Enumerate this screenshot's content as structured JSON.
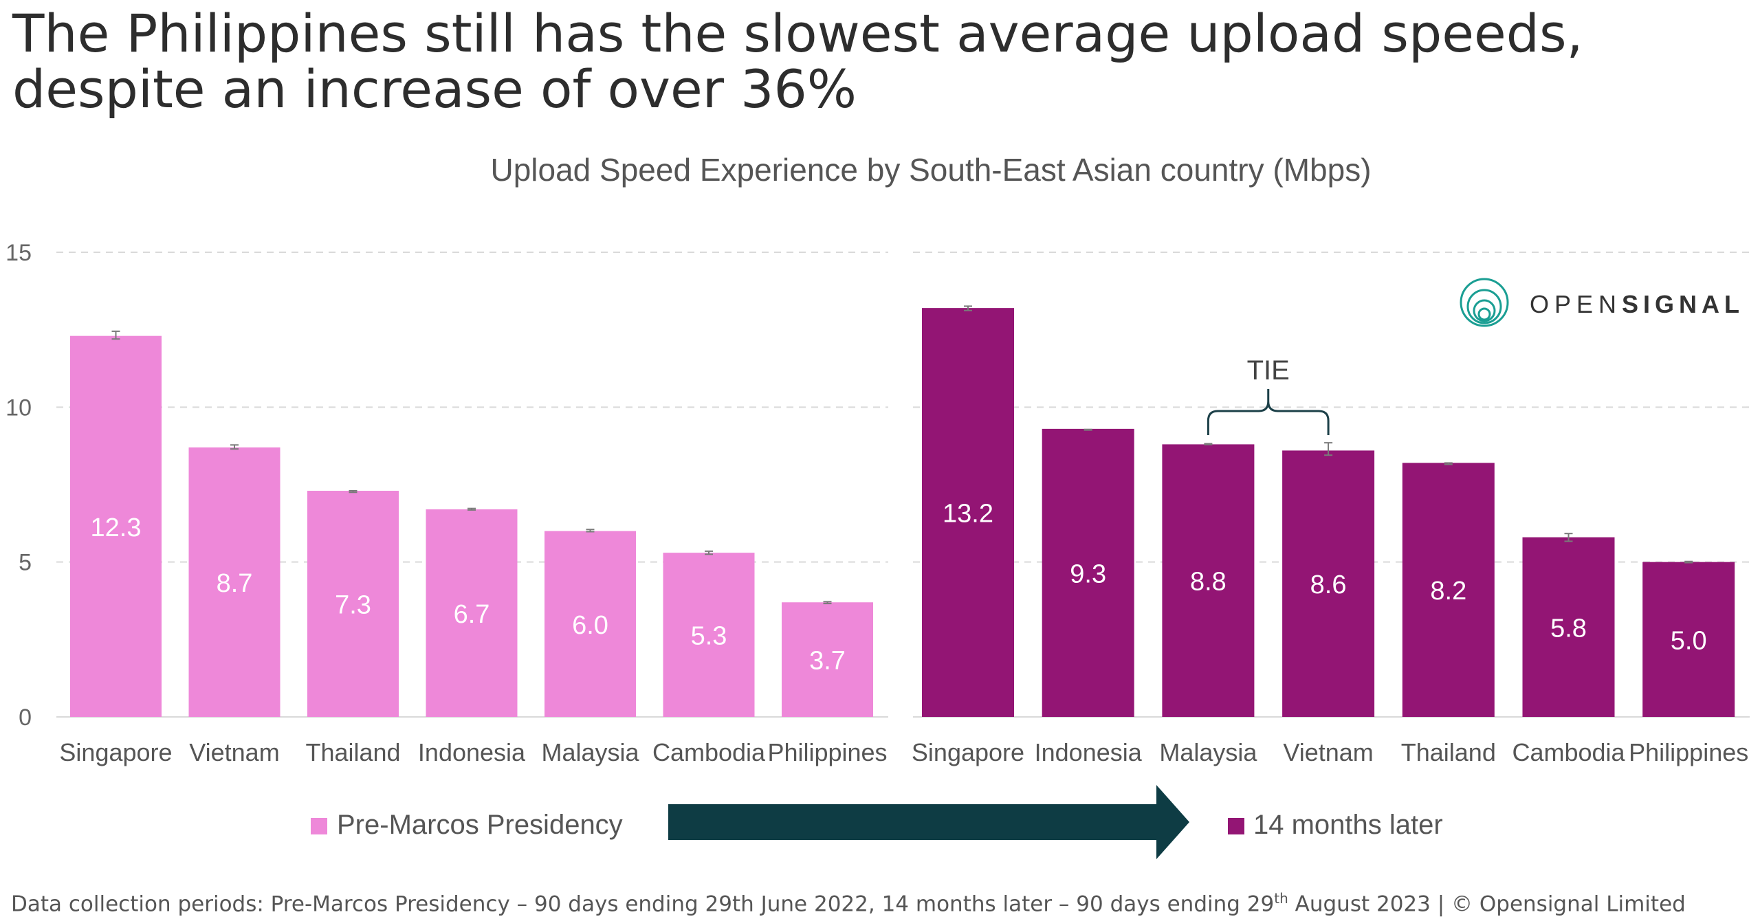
{
  "headline": {
    "line1": "The Philippines still has the slowest average upload speeds,",
    "line2": "despite an increase of over 36%"
  },
  "chart_data": {
    "type": "bar",
    "title": "Upload Speed Experience  by South-East Asian country (Mbps)",
    "ylim": [
      0,
      15
    ],
    "yticks": [
      0,
      5,
      10,
      15
    ],
    "grid": true,
    "legend_placement": "bottom",
    "series": [
      {
        "name": "Pre-Marcos Presidency",
        "color": "#ee88d9",
        "categories": [
          "Singapore",
          "Vietnam",
          "Thailand",
          "Indonesia",
          "Malaysia",
          "Cambodia",
          "Philippines"
        ],
        "values": [
          12.3,
          8.7,
          7.3,
          6.7,
          6.0,
          5.3,
          3.7
        ],
        "error_low": [
          12.2,
          8.65,
          7.25,
          6.68,
          5.98,
          5.25,
          3.66
        ],
        "error_high": [
          12.45,
          8.78,
          7.3,
          6.73,
          6.05,
          5.35,
          3.72
        ]
      },
      {
        "name": "14 months later",
        "color": "#931574",
        "categories": [
          "Singapore",
          "Indonesia",
          "Malaysia",
          "Vietnam",
          "Thailand",
          "Cambodia",
          "Philippines"
        ],
        "values": [
          13.2,
          9.3,
          8.8,
          8.6,
          8.2,
          5.8,
          5.0
        ],
        "error_low": [
          13.12,
          9.26,
          8.79,
          8.45,
          8.15,
          5.67,
          4.98
        ],
        "error_high": [
          13.26,
          9.28,
          8.82,
          8.85,
          8.2,
          5.92,
          5.02
        ]
      }
    ],
    "annotation": {
      "text": "TIE",
      "spans": [
        "Malaysia",
        "Vietnam"
      ],
      "series": "14 months later"
    },
    "legend_arrow_color": "#0e3c44"
  },
  "logo": {
    "text_light": "OPEN",
    "text_bold": "SIGNAL",
    "color": "#1a9e93"
  },
  "footer": {
    "part1": "Data collection periods: Pre-Marcos Presidency – 90 days ending 29th June 2022, 14 months later – 90 days ending 29",
    "sup": "th",
    "part2": " August 2023 | © Opensignal Limited"
  }
}
